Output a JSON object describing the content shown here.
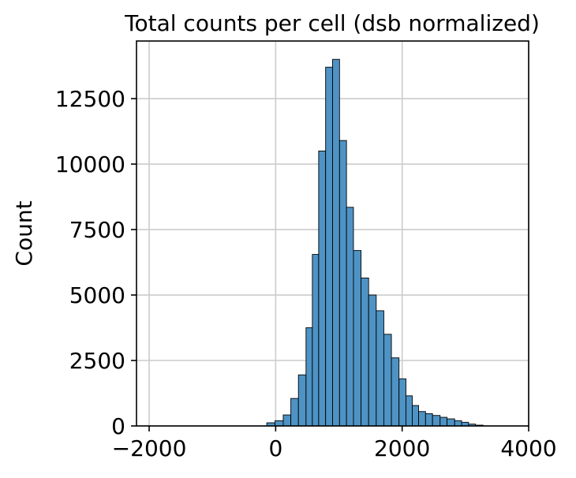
{
  "chart_data": {
    "type": "bar",
    "title": "Total counts per cell (dsb normalized)",
    "xlabel": "",
    "ylabel": "Count",
    "xlim": [
      -2200,
      4000
    ],
    "ylim": [
      0,
      14700
    ],
    "x_ticks": [
      -2000,
      0,
      2000,
      4000
    ],
    "x_tick_labels": [
      "−2000",
      "0",
      "2000",
      "4000"
    ],
    "y_ticks": [
      0,
      2500,
      5000,
      7500,
      10000,
      12500
    ],
    "y_tick_labels": [
      "0",
      "2500",
      "5000",
      "7500",
      "10000",
      "12500"
    ],
    "grid": true,
    "legend": "none",
    "bar_color": "#4e93c4",
    "bar_edge_color": "#000000",
    "bins": [
      {
        "x0": -140,
        "x1": -10,
        "value": 120
      },
      {
        "x0": -10,
        "x1": 120,
        "value": 200
      },
      {
        "x0": 120,
        "x1": 240,
        "value": 420
      },
      {
        "x0": 240,
        "x1": 360,
        "value": 1050
      },
      {
        "x0": 360,
        "x1": 480,
        "value": 1950
      },
      {
        "x0": 480,
        "x1": 580,
        "value": 3750
      },
      {
        "x0": 580,
        "x1": 680,
        "value": 6550
      },
      {
        "x0": 680,
        "x1": 790,
        "value": 10500
      },
      {
        "x0": 790,
        "x1": 900,
        "value": 13700
      },
      {
        "x0": 900,
        "x1": 1010,
        "value": 14000
      },
      {
        "x0": 1010,
        "x1": 1120,
        "value": 10900
      },
      {
        "x0": 1120,
        "x1": 1230,
        "value": 8350
      },
      {
        "x0": 1230,
        "x1": 1350,
        "value": 6700
      },
      {
        "x0": 1350,
        "x1": 1470,
        "value": 5650
      },
      {
        "x0": 1470,
        "x1": 1590,
        "value": 5000
      },
      {
        "x0": 1590,
        "x1": 1710,
        "value": 4400
      },
      {
        "x0": 1710,
        "x1": 1830,
        "value": 3500
      },
      {
        "x0": 1830,
        "x1": 1950,
        "value": 2600
      },
      {
        "x0": 1950,
        "x1": 2060,
        "value": 1800
      },
      {
        "x0": 2060,
        "x1": 2160,
        "value": 1150
      },
      {
        "x0": 2160,
        "x1": 2260,
        "value": 780
      },
      {
        "x0": 2260,
        "x1": 2370,
        "value": 550
      },
      {
        "x0": 2370,
        "x1": 2480,
        "value": 470
      },
      {
        "x0": 2480,
        "x1": 2600,
        "value": 400
      },
      {
        "x0": 2600,
        "x1": 2710,
        "value": 330
      },
      {
        "x0": 2710,
        "x1": 2830,
        "value": 270
      },
      {
        "x0": 2830,
        "x1": 2940,
        "value": 200
      },
      {
        "x0": 2940,
        "x1": 3050,
        "value": 140
      },
      {
        "x0": 3050,
        "x1": 3160,
        "value": 70
      },
      {
        "x0": 3160,
        "x1": 3280,
        "value": 30
      }
    ]
  }
}
